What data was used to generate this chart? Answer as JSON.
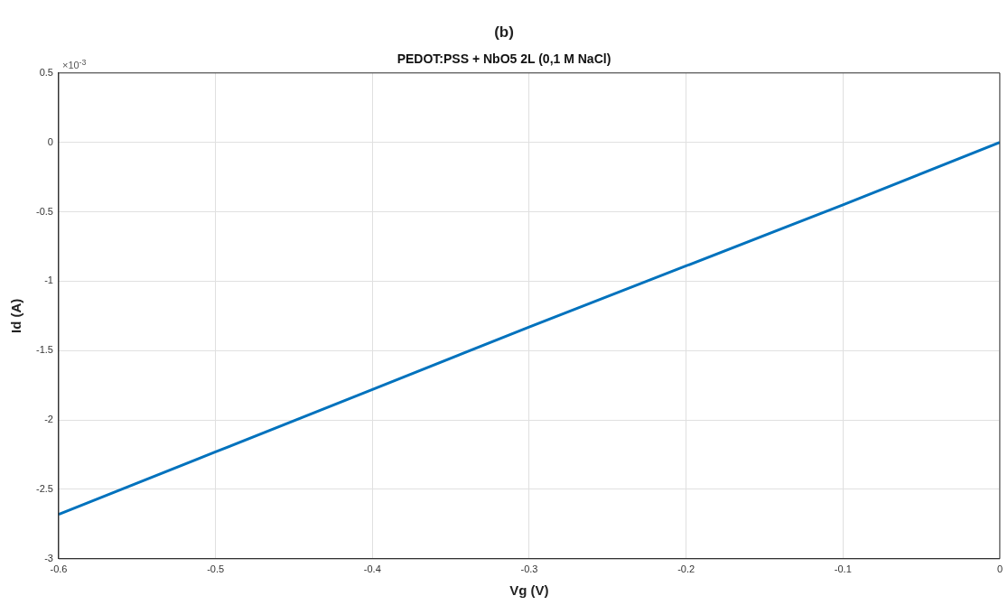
{
  "chart_data": {
    "type": "line",
    "title": "PEDOT:PSS + NbO5 2L (0,1 M NaCl)",
    "xlabel": "Vg (V)",
    "ylabel": "Id (A)",
    "annotations": [
      "(b)",
      "×10$^{-3}$"
    ],
    "x": [
      -0.6,
      -0.5,
      -0.4,
      -0.3,
      -0.2,
      -0.1,
      0
    ],
    "series": [
      {
        "color": "#0072bd",
        "values": [
          -2.68,
          -2.23,
          -1.78,
          -1.33,
          -0.89,
          -0.45,
          0
        ]
      }
    ],
    "xlim": [
      -0.6,
      0
    ],
    "xticks": [
      -0.6,
      -0.5,
      -0.4,
      -0.3,
      -0.2,
      -0.1,
      0
    ],
    "ylim": [
      -3,
      0.5
    ],
    "yticks": [
      -3,
      -2.5,
      -2,
      -1.5,
      -1,
      -0.5,
      0,
      0.5
    ],
    "grid": true,
    "legend": false,
    "marker": "none",
    "line_style": "solid"
  }
}
